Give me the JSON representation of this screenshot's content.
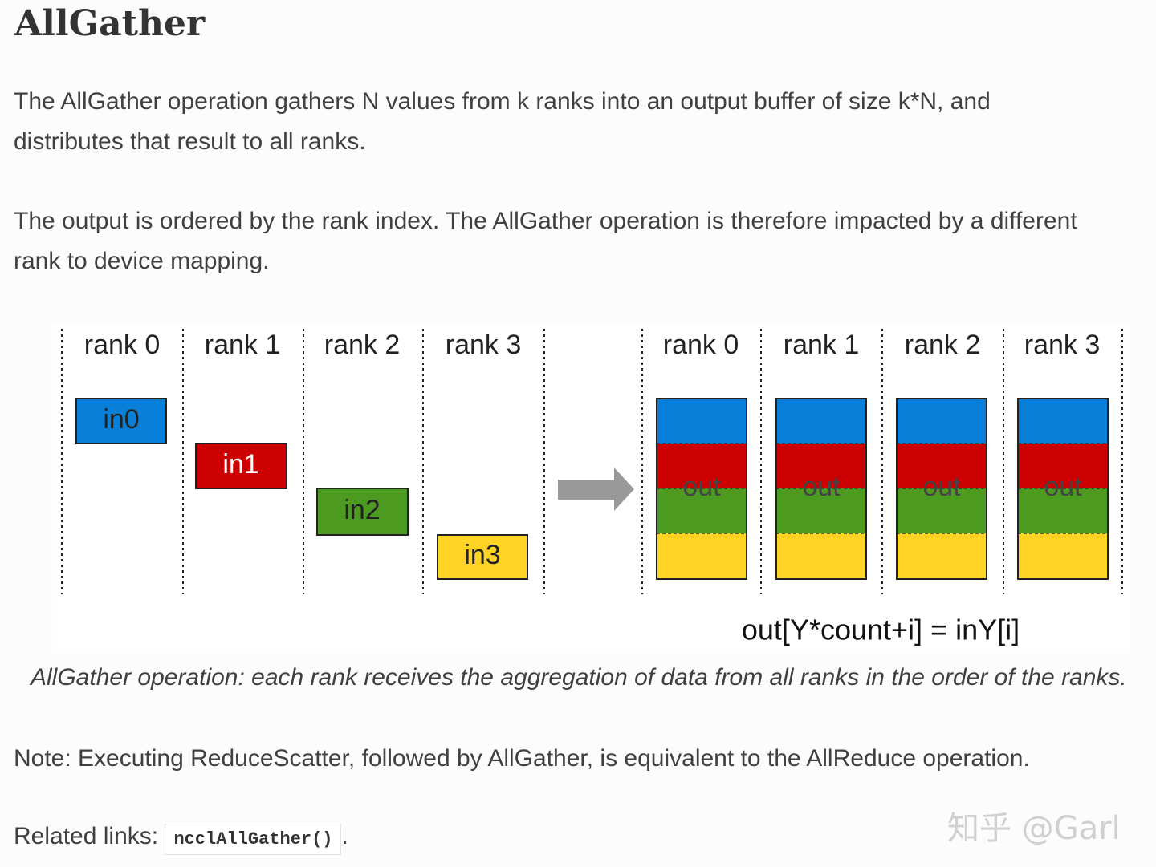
{
  "header": {
    "title": "AllGather"
  },
  "paragraphs": [
    "The AllGather operation gathers N values from k ranks into an output buffer of size k*N, and distributes that result to all ranks.",
    "The output is ordered by the rank index. The AllGather operation is therefore impacted by a different rank to device mapping."
  ],
  "figure": {
    "left_ranks": [
      "rank 0",
      "rank 1",
      "rank 2",
      "rank 3"
    ],
    "inputs": [
      "in0",
      "in1",
      "in2",
      "in3"
    ],
    "right_ranks": [
      "rank 0",
      "rank 1",
      "rank 2",
      "rank 3"
    ],
    "outputs": [
      "out",
      "out",
      "out",
      "out"
    ],
    "formula": "out[Y*count+i] = inY[i]",
    "caption": "AllGather operation: each rank receives the aggregation of data from all ranks in the order of the ranks."
  },
  "note": "Note: Executing ReduceScatter, followed by AllGather, is equivalent to the AllReduce operation.",
  "related": {
    "label": "Related links:",
    "code": "ncclAllGather()",
    "trailing": "."
  },
  "watermark": "知乎 @Garl"
}
